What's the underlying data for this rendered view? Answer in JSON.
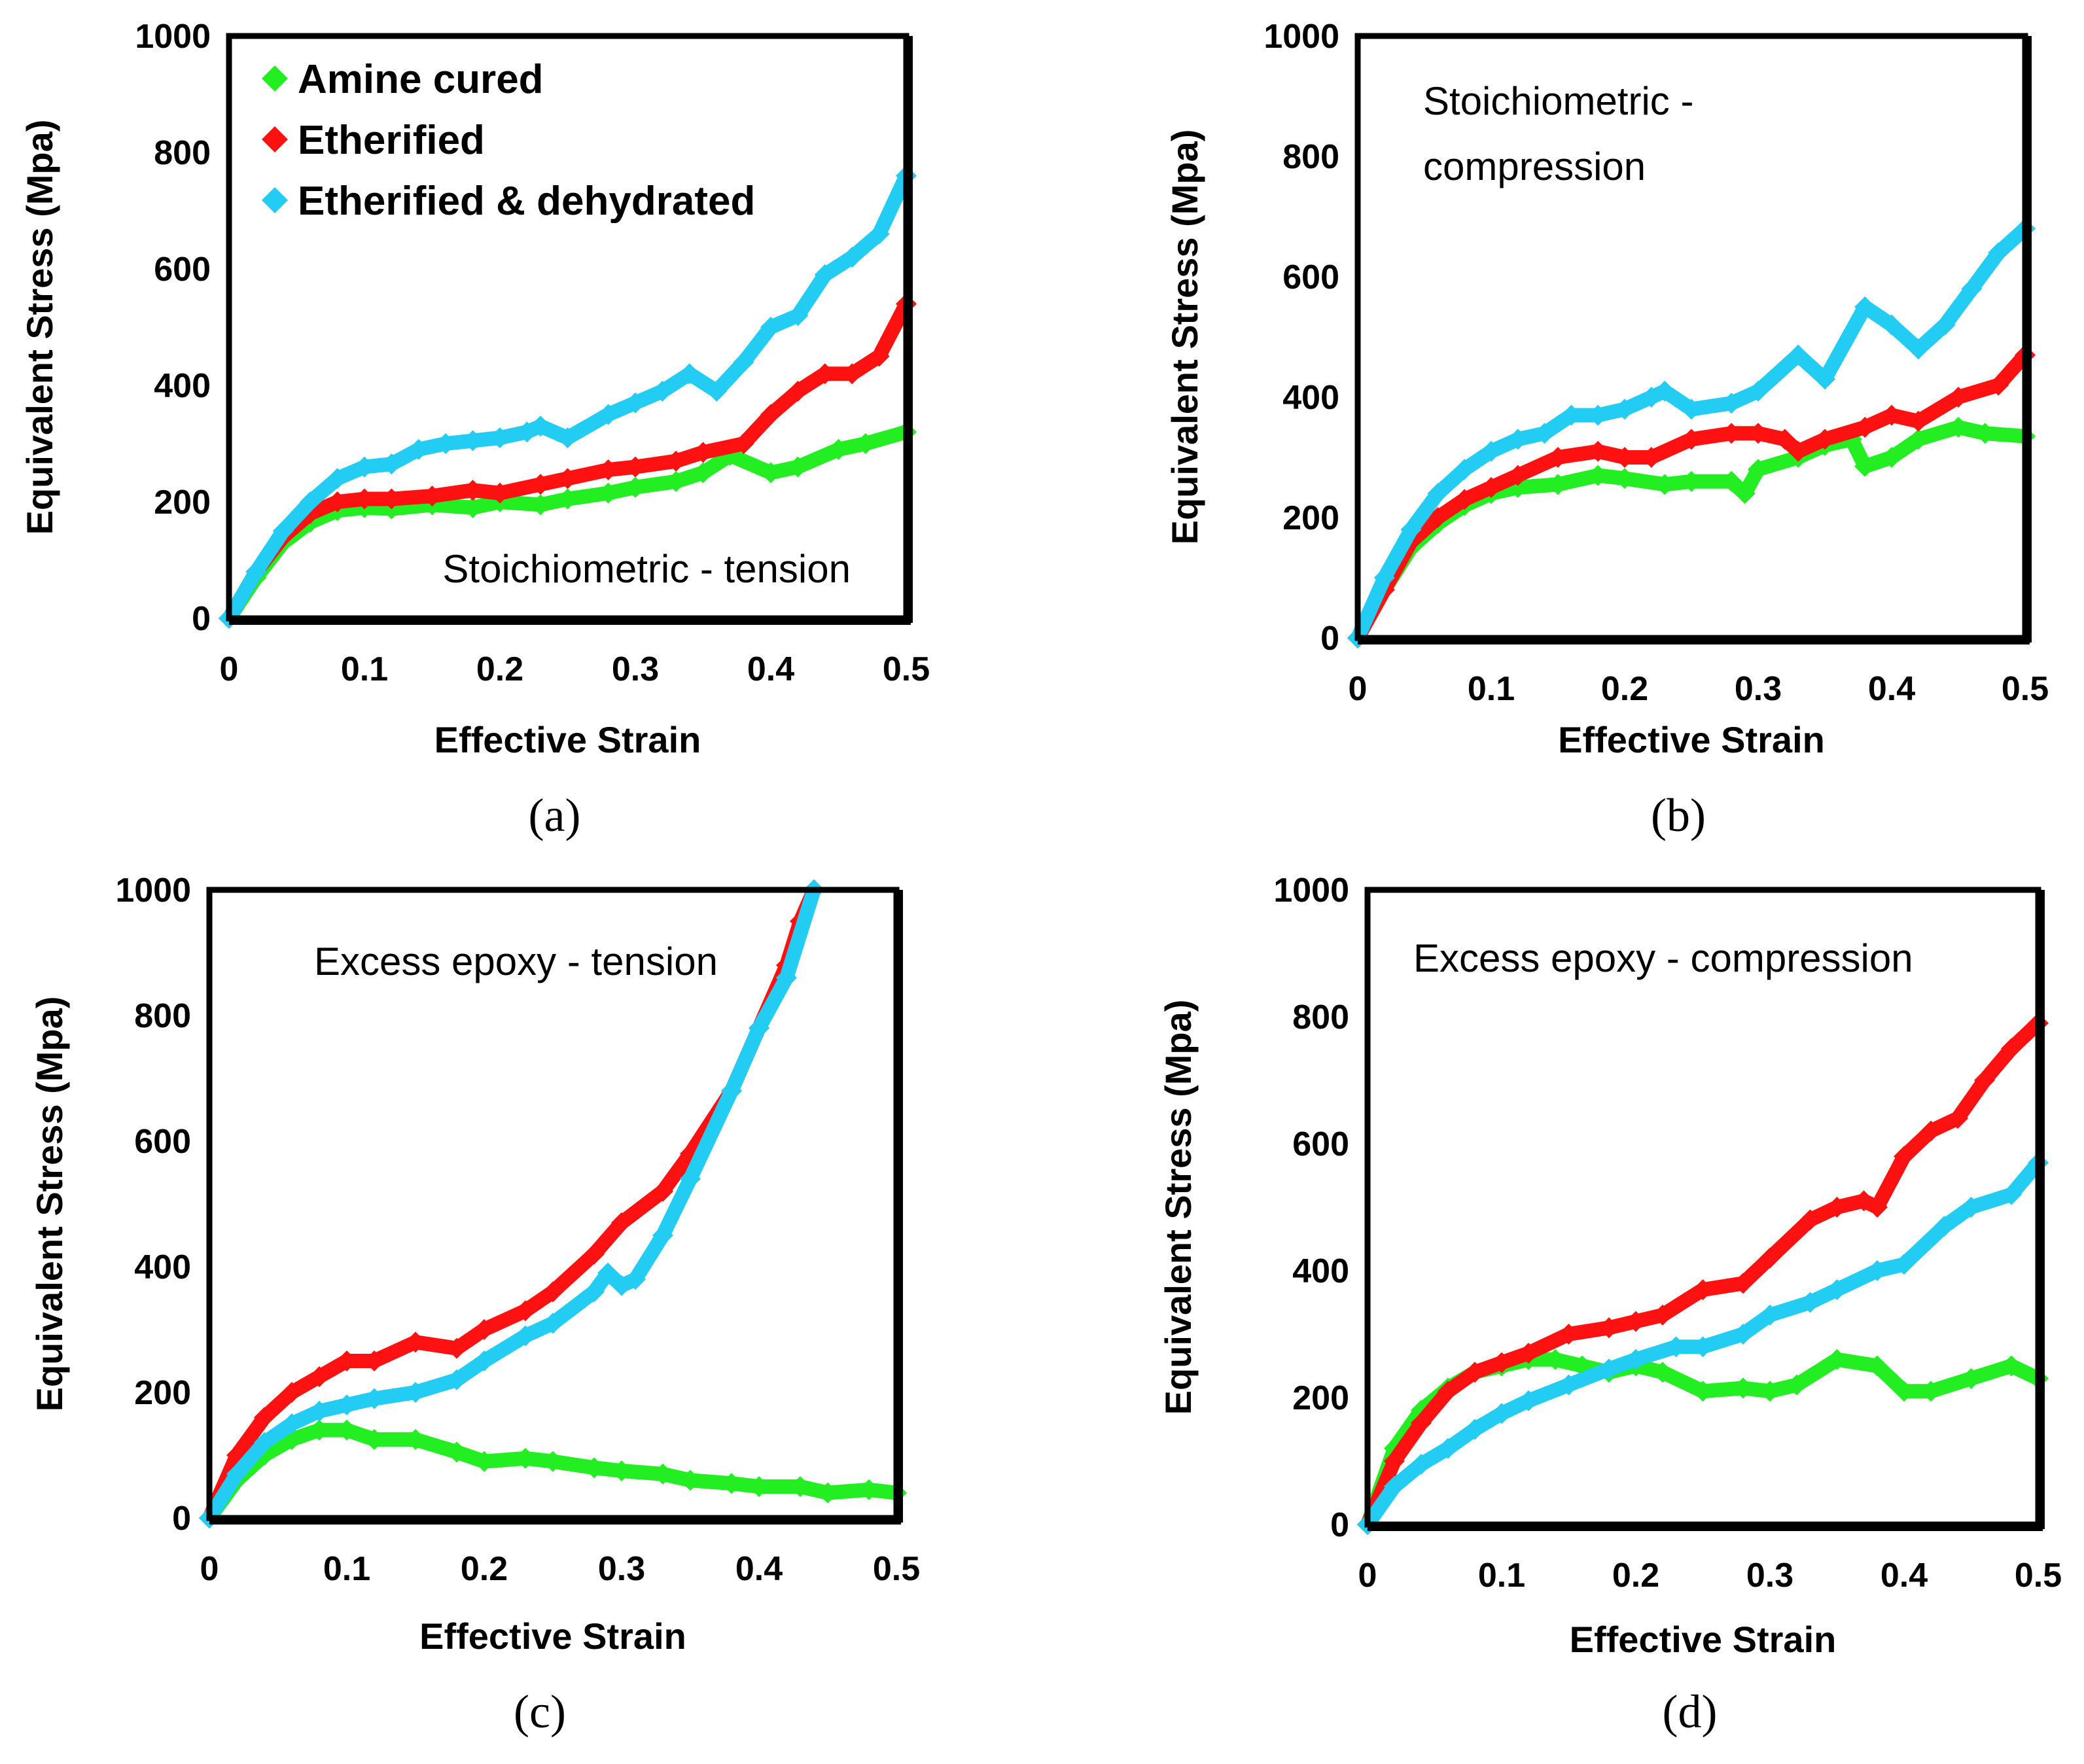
{
  "colors": {
    "Amine cured": "#22ee22",
    "Etherified": "#ff1111",
    "Etherified & dehydrated": "#22ccf2"
  },
  "chart_data": [
    {
      "type": "line",
      "panel": "(a)",
      "annotation": "Stoichiometric - tension",
      "xlabel": "Effective Strain",
      "ylabel": "Equivalent Stress (Mpa)",
      "xlim": [
        0,
        0.5
      ],
      "ylim": [
        0,
        1000
      ],
      "xticks": [
        "0",
        "0.1",
        "0.2",
        "0.3",
        "0.4",
        "0.5"
      ],
      "yticks": [
        "0",
        "200",
        "400",
        "600",
        "800",
        "1000"
      ],
      "legend": {
        "position": "top-left",
        "entries": [
          "Amine cured",
          "Etherified",
          "Etherified & dehydrated"
        ]
      },
      "series": [
        {
          "name": "Amine cured",
          "x": [
            0,
            0.02,
            0.04,
            0.06,
            0.08,
            0.1,
            0.12,
            0.15,
            0.18,
            0.2,
            0.23,
            0.25,
            0.28,
            0.3,
            0.33,
            0.35,
            0.37,
            0.4,
            0.42,
            0.45,
            0.47,
            0.5
          ],
          "y": [
            0,
            70,
            130,
            165,
            185,
            190,
            188,
            195,
            190,
            200,
            195,
            205,
            215,
            225,
            235,
            250,
            280,
            250,
            260,
            290,
            300,
            320
          ]
        },
        {
          "name": "Etherified",
          "x": [
            0,
            0.02,
            0.04,
            0.06,
            0.08,
            0.1,
            0.12,
            0.15,
            0.18,
            0.2,
            0.23,
            0.25,
            0.28,
            0.3,
            0.33,
            0.35,
            0.38,
            0.4,
            0.42,
            0.44,
            0.46,
            0.48,
            0.5
          ],
          "y": [
            0,
            80,
            140,
            180,
            200,
            205,
            205,
            210,
            220,
            215,
            230,
            240,
            255,
            260,
            270,
            285,
            300,
            350,
            390,
            420,
            420,
            450,
            540
          ]
        },
        {
          "name": "Etherified & dehydrated",
          "x": [
            0,
            0.02,
            0.04,
            0.06,
            0.08,
            0.1,
            0.12,
            0.14,
            0.16,
            0.18,
            0.2,
            0.22,
            0.23,
            0.25,
            0.28,
            0.3,
            0.32,
            0.34,
            0.36,
            0.38,
            0.4,
            0.42,
            0.44,
            0.46,
            0.48,
            0.5
          ],
          "y": [
            0,
            80,
            150,
            200,
            240,
            260,
            265,
            290,
            300,
            305,
            310,
            320,
            330,
            310,
            350,
            370,
            390,
            420,
            390,
            440,
            500,
            520,
            590,
            620,
            660,
            760
          ]
        }
      ]
    },
    {
      "type": "line",
      "panel": "(b)",
      "annotation": "Stoichiometric - compression",
      "xlabel": "Effective Strain",
      "ylabel": "Equivalent Stress (Mpa)",
      "xlim": [
        0,
        0.5
      ],
      "ylim": [
        0,
        1000
      ],
      "xticks": [
        "0",
        "0.1",
        "0.2",
        "0.3",
        "0.4",
        "0.5"
      ],
      "yticks": [
        "0",
        "200",
        "400",
        "600",
        "800",
        "1000"
      ],
      "series": [
        {
          "name": "Amine cured",
          "x": [
            0,
            0.02,
            0.04,
            0.06,
            0.08,
            0.1,
            0.12,
            0.15,
            0.18,
            0.2,
            0.23,
            0.25,
            0.28,
            0.29,
            0.3,
            0.33,
            0.35,
            0.37,
            0.38,
            0.4,
            0.42,
            0.45,
            0.47,
            0.5
          ],
          "y": [
            0,
            80,
            150,
            190,
            220,
            240,
            250,
            255,
            270,
            265,
            255,
            260,
            260,
            240,
            280,
            300,
            320,
            330,
            285,
            300,
            330,
            350,
            340,
            335
          ]
        },
        {
          "name": "Etherified",
          "x": [
            0,
            0.02,
            0.04,
            0.06,
            0.08,
            0.1,
            0.12,
            0.15,
            0.18,
            0.2,
            0.22,
            0.25,
            0.28,
            0.3,
            0.32,
            0.33,
            0.35,
            0.38,
            0.4,
            0.42,
            0.45,
            0.48,
            0.5
          ],
          "y": [
            0,
            80,
            160,
            200,
            230,
            250,
            270,
            300,
            310,
            300,
            300,
            330,
            340,
            340,
            330,
            310,
            330,
            350,
            370,
            360,
            400,
            420,
            470
          ]
        },
        {
          "name": "Etherified & dehydrated",
          "x": [
            0,
            0.02,
            0.04,
            0.06,
            0.08,
            0.1,
            0.12,
            0.14,
            0.16,
            0.18,
            0.2,
            0.22,
            0.23,
            0.25,
            0.28,
            0.3,
            0.33,
            0.35,
            0.38,
            0.4,
            0.42,
            0.44,
            0.46,
            0.48,
            0.5
          ],
          "y": [
            0,
            100,
            180,
            240,
            280,
            310,
            330,
            340,
            370,
            370,
            380,
            400,
            410,
            380,
            390,
            410,
            470,
            430,
            550,
            520,
            480,
            520,
            580,
            640,
            680
          ]
        }
      ]
    },
    {
      "type": "line",
      "panel": "(c)",
      "annotation": "Excess epoxy - tension",
      "xlabel": "Effective Strain",
      "ylabel": "Equivalent Stress (Mpa)",
      "xlim": [
        0,
        0.5
      ],
      "ylim": [
        0,
        1000
      ],
      "xticks": [
        "0",
        "0.1",
        "0.2",
        "0.3",
        "0.4",
        "0.5"
      ],
      "yticks": [
        "0",
        "200",
        "400",
        "600",
        "800",
        "1000"
      ],
      "series": [
        {
          "name": "Amine cured",
          "x": [
            0,
            0.02,
            0.04,
            0.06,
            0.08,
            0.1,
            0.12,
            0.15,
            0.18,
            0.2,
            0.23,
            0.25,
            0.28,
            0.3,
            0.33,
            0.35,
            0.38,
            0.4,
            0.43,
            0.45,
            0.48,
            0.5
          ],
          "y": [
            0,
            60,
            100,
            125,
            140,
            140,
            125,
            125,
            105,
            90,
            95,
            90,
            80,
            75,
            70,
            60,
            55,
            50,
            50,
            40,
            45,
            40
          ]
        },
        {
          "name": "Etherified",
          "x": [
            0,
            0.02,
            0.04,
            0.06,
            0.08,
            0.1,
            0.12,
            0.15,
            0.18,
            0.2,
            0.23,
            0.25,
            0.28,
            0.3,
            0.33,
            0.35,
            0.38,
            0.4,
            0.42,
            0.43,
            0.44
          ],
          "y": [
            0,
            100,
            160,
            200,
            225,
            250,
            250,
            280,
            270,
            300,
            330,
            360,
            420,
            470,
            520,
            580,
            680,
            780,
            880,
            950,
            1000
          ]
        },
        {
          "name": "Etherified & dehydrated",
          "x": [
            0,
            0.02,
            0.04,
            0.06,
            0.08,
            0.1,
            0.12,
            0.15,
            0.18,
            0.2,
            0.23,
            0.25,
            0.28,
            0.29,
            0.3,
            0.31,
            0.33,
            0.35,
            0.38,
            0.4,
            0.42,
            0.44
          ],
          "y": [
            0,
            70,
            120,
            150,
            170,
            180,
            190,
            200,
            220,
            250,
            290,
            310,
            360,
            390,
            370,
            380,
            450,
            540,
            680,
            780,
            860,
            1000
          ]
        }
      ]
    },
    {
      "type": "line",
      "panel": "(d)",
      "annotation": "Excess epoxy - compression",
      "xlabel": "Effective Strain",
      "ylabel": "Equivalent Stress (Mpa)",
      "xlim": [
        0,
        0.5
      ],
      "ylim": [
        0,
        1000
      ],
      "xticks": [
        "0",
        "0.1",
        "0.2",
        "0.3",
        "0.4",
        "0.5"
      ],
      "yticks": [
        "0",
        "200",
        "400",
        "600",
        "800",
        "1000"
      ],
      "series": [
        {
          "name": "Amine cured",
          "x": [
            0,
            0.02,
            0.04,
            0.06,
            0.08,
            0.1,
            0.12,
            0.14,
            0.16,
            0.18,
            0.2,
            0.22,
            0.25,
            0.28,
            0.3,
            0.32,
            0.35,
            0.38,
            0.4,
            0.42,
            0.45,
            0.48,
            0.5
          ],
          "y": [
            0,
            120,
            180,
            215,
            240,
            250,
            260,
            260,
            250,
            240,
            250,
            240,
            210,
            215,
            210,
            220,
            260,
            250,
            210,
            210,
            230,
            250,
            230
          ]
        },
        {
          "name": "Etherified",
          "x": [
            0,
            0.02,
            0.04,
            0.06,
            0.08,
            0.1,
            0.12,
            0.15,
            0.18,
            0.2,
            0.22,
            0.25,
            0.28,
            0.3,
            0.33,
            0.35,
            0.37,
            0.38,
            0.4,
            0.42,
            0.44,
            0.46,
            0.48,
            0.5
          ],
          "y": [
            0,
            100,
            160,
            210,
            240,
            255,
            270,
            300,
            310,
            320,
            330,
            370,
            380,
            420,
            480,
            500,
            510,
            500,
            580,
            620,
            640,
            700,
            750,
            790
          ]
        },
        {
          "name": "Etherified & dehydrated",
          "x": [
            0,
            0.02,
            0.04,
            0.06,
            0.08,
            0.1,
            0.12,
            0.15,
            0.18,
            0.2,
            0.23,
            0.25,
            0.28,
            0.3,
            0.33,
            0.35,
            0.38,
            0.4,
            0.43,
            0.45,
            0.48,
            0.5
          ],
          "y": [
            0,
            60,
            95,
            120,
            150,
            175,
            195,
            220,
            245,
            260,
            280,
            280,
            300,
            330,
            350,
            370,
            400,
            410,
            470,
            500,
            520,
            570
          ]
        }
      ]
    }
  ]
}
